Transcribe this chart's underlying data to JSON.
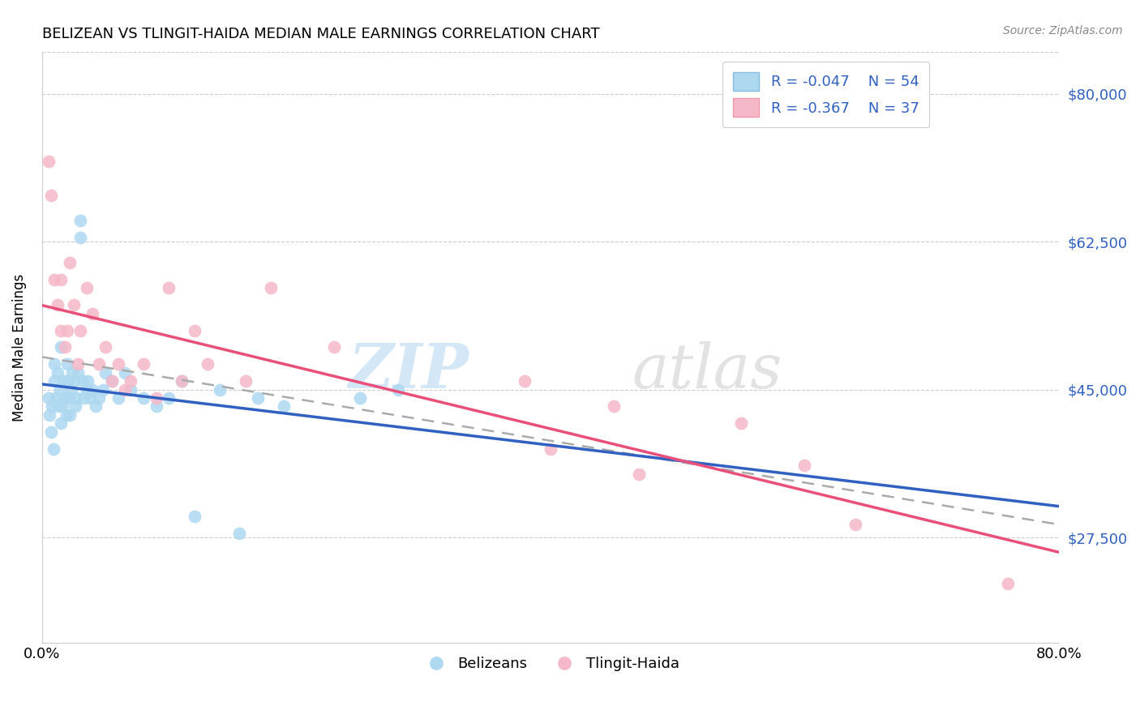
{
  "title": "BELIZEAN VS TLINGIT-HAIDA MEDIAN MALE EARNINGS CORRELATION CHART",
  "source": "Source: ZipAtlas.com",
  "ylabel": "Median Male Earnings",
  "xlim": [
    0.0,
    0.8
  ],
  "ylim": [
    15000,
    85000
  ],
  "yticks": [
    27500,
    45000,
    62500,
    80000
  ],
  "ytick_labels": [
    "$27,500",
    "$45,000",
    "$62,500",
    "$80,000"
  ],
  "xticks": [
    0.0,
    0.8
  ],
  "xtick_labels": [
    "0.0%",
    "80.0%"
  ],
  "blue_color": "#add8f0",
  "pink_color": "#f5b8c8",
  "blue_line_color": "#3060c0",
  "pink_line_color": "#e8507a",
  "dashed_color": "#aaaaaa",
  "right_label_color": "#3060c0",
  "legend_text_color": "#3060c0",
  "watermark_text": "ZIPatlas",
  "watermark_color": "#d0e8f5",
  "legend_r_blue": "R = -0.047",
  "legend_n_blue": "N = 54",
  "legend_r_pink": "R = -0.367",
  "legend_n_pink": "N = 37",
  "blue_scatter_x": [
    0.005,
    0.006,
    0.007,
    0.008,
    0.009,
    0.01,
    0.01,
    0.011,
    0.012,
    0.013,
    0.014,
    0.015,
    0.015,
    0.016,
    0.017,
    0.018,
    0.019,
    0.02,
    0.02,
    0.021,
    0.022,
    0.023,
    0.024,
    0.025,
    0.026,
    0.027,
    0.028,
    0.03,
    0.03,
    0.032,
    0.033,
    0.035,
    0.036,
    0.038,
    0.04,
    0.042,
    0.045,
    0.048,
    0.05,
    0.055,
    0.06,
    0.065,
    0.07,
    0.08,
    0.09,
    0.1,
    0.11,
    0.12,
    0.14,
    0.155,
    0.17,
    0.19,
    0.25,
    0.28
  ],
  "blue_scatter_y": [
    44000,
    42000,
    40000,
    43000,
    38000,
    46000,
    48000,
    44000,
    47000,
    43000,
    45000,
    41000,
    50000,
    43000,
    46000,
    44000,
    42000,
    48000,
    46000,
    44000,
    42000,
    45000,
    47000,
    46000,
    43000,
    44000,
    47000,
    65000,
    63000,
    46000,
    44000,
    45000,
    46000,
    44000,
    45000,
    43000,
    44000,
    45000,
    47000,
    46000,
    44000,
    47000,
    45000,
    44000,
    43000,
    44000,
    46000,
    30000,
    45000,
    28000,
    44000,
    43000,
    44000,
    45000
  ],
  "pink_scatter_x": [
    0.005,
    0.007,
    0.01,
    0.012,
    0.015,
    0.015,
    0.018,
    0.02,
    0.022,
    0.025,
    0.028,
    0.03,
    0.035,
    0.04,
    0.045,
    0.05,
    0.055,
    0.06,
    0.065,
    0.07,
    0.08,
    0.09,
    0.1,
    0.11,
    0.12,
    0.13,
    0.16,
    0.18,
    0.23,
    0.38,
    0.4,
    0.45,
    0.47,
    0.55,
    0.6,
    0.64,
    0.76
  ],
  "pink_scatter_y": [
    72000,
    68000,
    58000,
    55000,
    52000,
    58000,
    50000,
    52000,
    60000,
    55000,
    48000,
    52000,
    57000,
    54000,
    48000,
    50000,
    46000,
    48000,
    45000,
    46000,
    48000,
    44000,
    57000,
    46000,
    52000,
    48000,
    46000,
    57000,
    50000,
    46000,
    38000,
    43000,
    35000,
    41000,
    36000,
    29000,
    22000
  ]
}
